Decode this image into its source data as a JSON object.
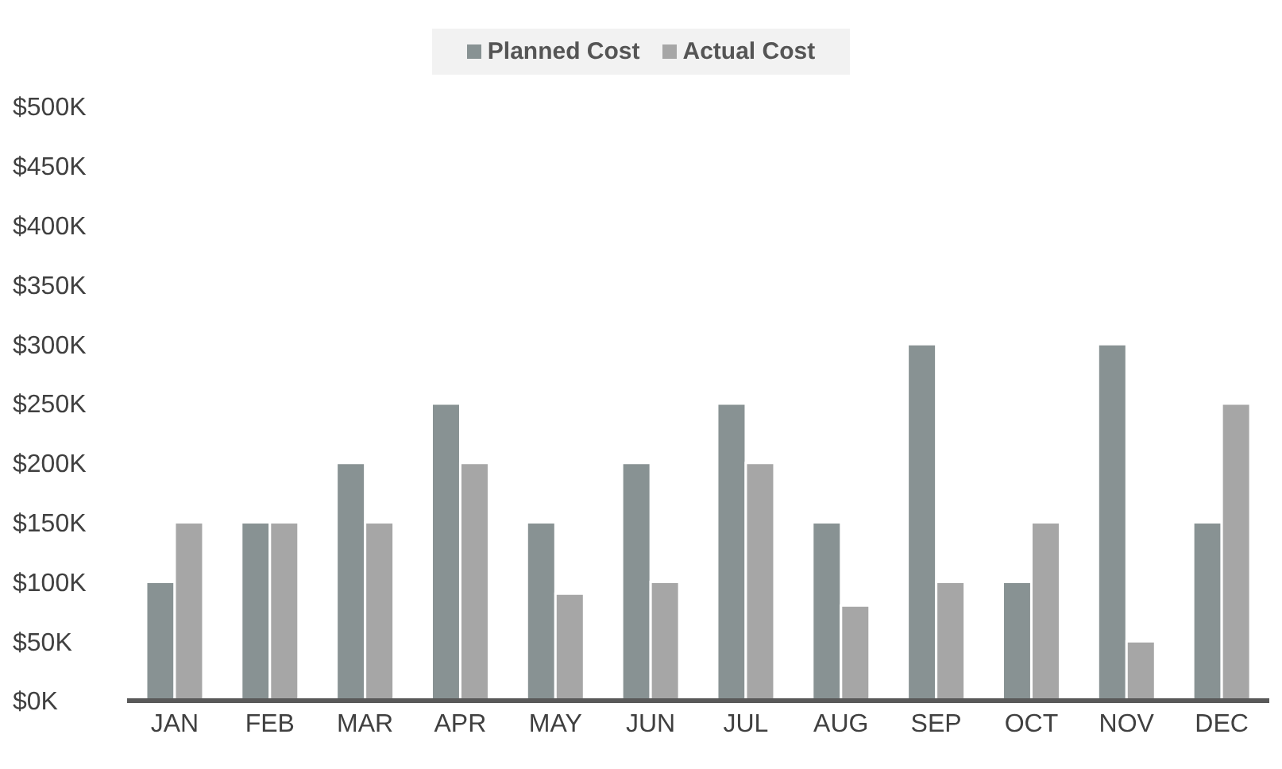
{
  "chart_data": {
    "type": "bar",
    "categories": [
      "JAN",
      "FEB",
      "MAR",
      "APR",
      "MAY",
      "JUN",
      "JUL",
      "AUG",
      "SEP",
      "OCT",
      "NOV",
      "DEC"
    ],
    "series": [
      {
        "name": "Planned Cost",
        "color": "#889293",
        "values": [
          100000,
          150000,
          200000,
          250000,
          150000,
          200000,
          250000,
          150000,
          300000,
          100000,
          300000,
          150000
        ]
      },
      {
        "name": "Actual Cost",
        "color": "#a6a6a6",
        "values": [
          150000,
          150000,
          150000,
          200000,
          90000,
          100000,
          200000,
          80000,
          100000,
          150000,
          50000,
          250000
        ]
      }
    ],
    "ylim": [
      0,
      500000
    ],
    "yticks": [
      {
        "value": 0,
        "label": "$0K"
      },
      {
        "value": 50000,
        "label": "$50K"
      },
      {
        "value": 100000,
        "label": "$100K"
      },
      {
        "value": 150000,
        "label": "$150K"
      },
      {
        "value": 200000,
        "label": "$200K"
      },
      {
        "value": 250000,
        "label": "$250K"
      },
      {
        "value": 300000,
        "label": "$300K"
      },
      {
        "value": 350000,
        "label": "$350K"
      },
      {
        "value": 400000,
        "label": "$400K"
      },
      {
        "value": 450000,
        "label": "$450K"
      },
      {
        "value": 500000,
        "label": "$500K"
      }
    ],
    "grid": false,
    "legend": "top"
  }
}
